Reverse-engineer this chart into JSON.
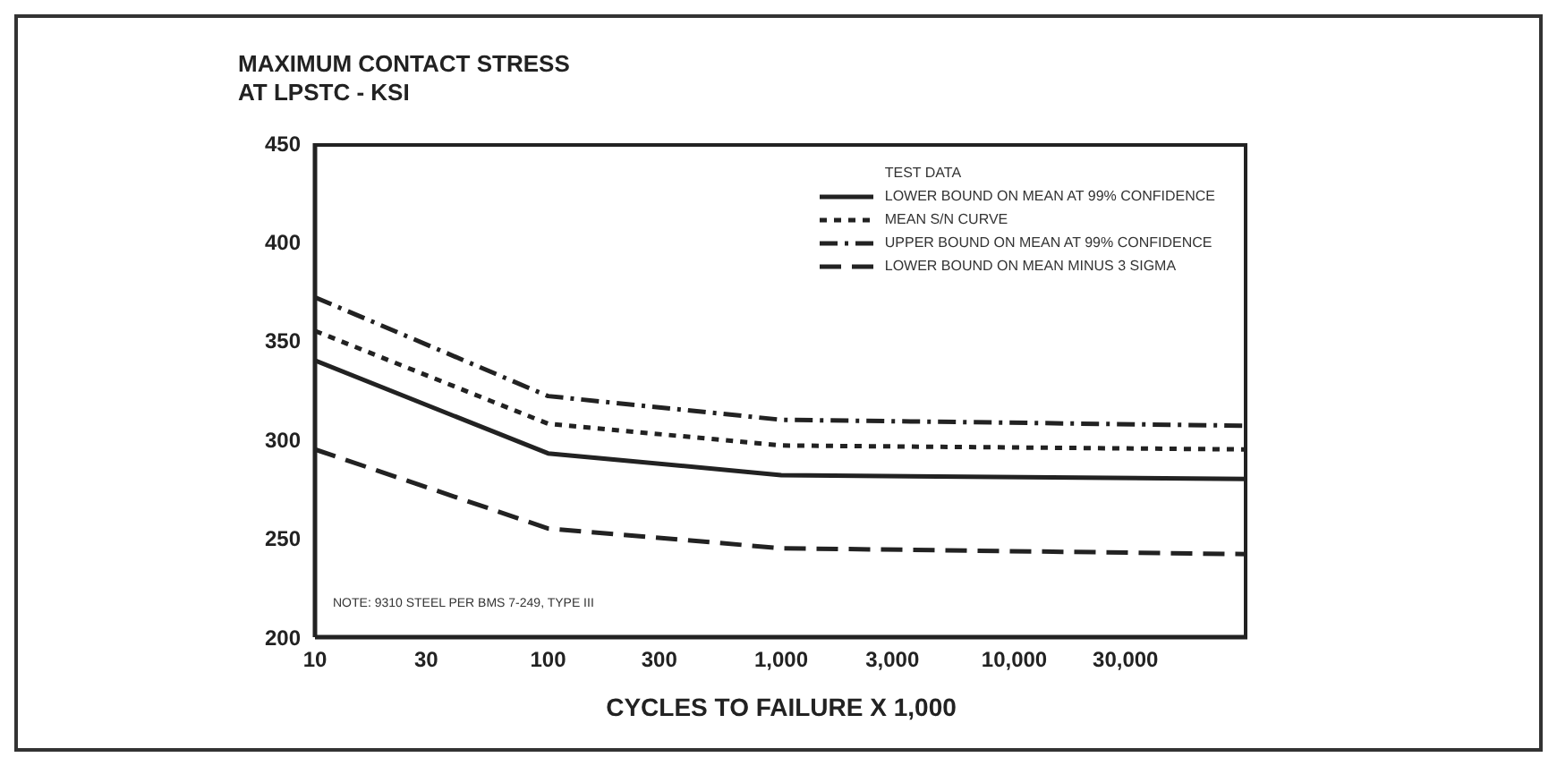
{
  "chart_data": {
    "type": "line",
    "ylabel": "MAXIMUM CONTACT STRESS AT LPSTC - KSI",
    "xlabel": "CYCLES TO FAILURE X 1,000",
    "legend_title": "TEST DATA",
    "legend": "top right",
    "log": "x",
    "grid": false,
    "marker": "none",
    "x": [
      10,
      100,
      1000,
      100000
    ],
    "xlim": [
      10,
      100000
    ],
    "xticks": [
      10,
      30,
      100,
      300,
      {
        "value": 1000,
        "label": "1,000"
      },
      {
        "value": 3000,
        "label": "3,000"
      },
      {
        "value": 10000,
        "label": "10,000"
      },
      {
        "value": 30000,
        "label": "30,000"
      }
    ],
    "ylim": [
      200,
      450
    ],
    "yticks": [
      200,
      250,
      300,
      350,
      400,
      450
    ],
    "series": [
      {
        "name": "LOWER BOUND ON MEAN AT 99% CONFIDENCE",
        "color": "#222222",
        "line_style": "solid",
        "values": [
          340,
          293,
          282,
          280
        ]
      },
      {
        "name": "MEAN S/N CURVE",
        "color": "#222222",
        "line_style": "dotted",
        "values": [
          355,
          308,
          297,
          295
        ]
      },
      {
        "name": "UPPER BOUND ON MEAN AT 99% CONFIDENCE",
        "color": "#222222",
        "line_style": "dashdot",
        "values": [
          372,
          322,
          310,
          307
        ]
      },
      {
        "name": "LOWER BOUND ON MEAN MINUS 3 SIGMA",
        "color": "#222222",
        "line_style": "dashed",
        "values": [
          295,
          255,
          245,
          242
        ]
      }
    ],
    "annotations": [
      "NOTE: 9310 STEEL PER BMS 7-249, TYPE III"
    ]
  }
}
